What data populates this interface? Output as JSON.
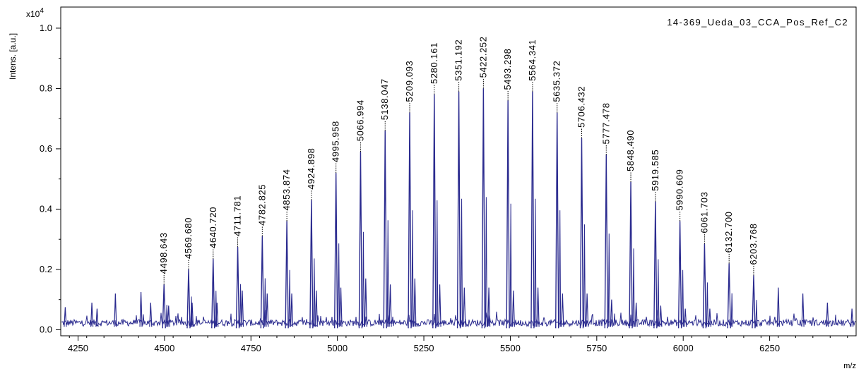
{
  "chart_data": {
    "type": "line",
    "title": "14-369_Ueda_03_CCA_Pos_Ref_C2",
    "xlabel": "m/z",
    "ylabel": "Intens. [a.u.]",
    "y_multiplier": "x10",
    "y_multiplier_exp": "4",
    "xlim": [
      4200,
      6500
    ],
    "ylim": [
      -0.02,
      1.07
    ],
    "x_ticks": [
      4250,
      4500,
      4750,
      5000,
      5250,
      5500,
      5750,
      6000,
      6250
    ],
    "x_tick_labels": [
      "4250",
      "4500",
      "4750",
      "5000",
      "5250",
      "5500",
      "5750",
      "6000",
      "6250"
    ],
    "y_ticks": [
      0.0,
      0.2,
      0.4,
      0.6,
      0.8,
      1.0
    ],
    "y_tick_labels": [
      "0.0",
      "0.2",
      "0.4",
      "0.6",
      "0.8",
      "1.0"
    ],
    "grid": false,
    "series_color": "#2b2b8f",
    "peaks": [
      {
        "mz": 4498.643,
        "label": "4498.643",
        "intensity": 0.15
      },
      {
        "mz": 4569.68,
        "label": "4569.680",
        "intensity": 0.2
      },
      {
        "mz": 4640.72,
        "label": "4640.720",
        "intensity": 0.235
      },
      {
        "mz": 4711.781,
        "label": "4711.781",
        "intensity": 0.275
      },
      {
        "mz": 4782.825,
        "label": "4782.825",
        "intensity": 0.31
      },
      {
        "mz": 4853.874,
        "label": "4853.874",
        "intensity": 0.36
      },
      {
        "mz": 4924.898,
        "label": "4924.898",
        "intensity": 0.43
      },
      {
        "mz": 4995.958,
        "label": "4995.958",
        "intensity": 0.52
      },
      {
        "mz": 5066.994,
        "label": "5066.994",
        "intensity": 0.59
      },
      {
        "mz": 5138.047,
        "label": "5138.047",
        "intensity": 0.66
      },
      {
        "mz": 5209.093,
        "label": "5209.093",
        "intensity": 0.72
      },
      {
        "mz": 5280.161,
        "label": "5280.161",
        "intensity": 0.78
      },
      {
        "mz": 5351.192,
        "label": "5351.192",
        "intensity": 0.79
      },
      {
        "mz": 5422.252,
        "label": "5422.252",
        "intensity": 0.8
      },
      {
        "mz": 5493.298,
        "label": "5493.298",
        "intensity": 0.76
      },
      {
        "mz": 5564.341,
        "label": "5564.341",
        "intensity": 0.79
      },
      {
        "mz": 5635.372,
        "label": "5635.372",
        "intensity": 0.72
      },
      {
        "mz": 5706.432,
        "label": "5706.432",
        "intensity": 0.635
      },
      {
        "mz": 5777.478,
        "label": "5777.478",
        "intensity": 0.58
      },
      {
        "mz": 5848.49,
        "label": "5848.490",
        "intensity": 0.49
      },
      {
        "mz": 5919.585,
        "label": "5919.585",
        "intensity": 0.425
      },
      {
        "mz": 5990.609,
        "label": "5990.609",
        "intensity": 0.36
      },
      {
        "mz": 6061.703,
        "label": "6061.703",
        "intensity": 0.285
      },
      {
        "mz": 6132.7,
        "label": "6132.700",
        "intensity": 0.22
      },
      {
        "mz": 6203.768,
        "label": "6203.768",
        "intensity": 0.18
      }
    ],
    "minor_peaks": [
      {
        "mz": 4213,
        "intensity": 0.075
      },
      {
        "mz": 4290,
        "intensity": 0.09
      },
      {
        "mz": 4305,
        "intensity": 0.07
      },
      {
        "mz": 4358,
        "intensity": 0.12
      },
      {
        "mz": 4432,
        "intensity": 0.125
      },
      {
        "mz": 4460,
        "intensity": 0.09
      },
      {
        "mz": 4512,
        "intensity": 0.08
      },
      {
        "mz": 4580,
        "intensity": 0.09
      },
      {
        "mz": 4652,
        "intensity": 0.09
      },
      {
        "mz": 4725,
        "intensity": 0.13
      },
      {
        "mz": 4797,
        "intensity": 0.12
      },
      {
        "mz": 4868,
        "intensity": 0.12
      },
      {
        "mz": 4939,
        "intensity": 0.13
      },
      {
        "mz": 5010,
        "intensity": 0.14
      },
      {
        "mz": 5082,
        "intensity": 0.17
      },
      {
        "mz": 5153,
        "intensity": 0.15
      },
      {
        "mz": 5224,
        "intensity": 0.17
      },
      {
        "mz": 5296,
        "intensity": 0.15
      },
      {
        "mz": 5367,
        "intensity": 0.14
      },
      {
        "mz": 5438,
        "intensity": 0.14
      },
      {
        "mz": 5509,
        "intensity": 0.13
      },
      {
        "mz": 5580,
        "intensity": 0.14
      },
      {
        "mz": 5651,
        "intensity": 0.12
      },
      {
        "mz": 5722,
        "intensity": 0.12
      },
      {
        "mz": 5793,
        "intensity": 0.1
      },
      {
        "mz": 5864,
        "intensity": 0.09
      },
      {
        "mz": 5935,
        "intensity": 0.08
      },
      {
        "mz": 6006,
        "intensity": 0.07
      },
      {
        "mz": 6077,
        "intensity": 0.07
      },
      {
        "mz": 6275,
        "intensity": 0.14
      },
      {
        "mz": 6346,
        "intensity": 0.12
      },
      {
        "mz": 6417,
        "intensity": 0.09
      },
      {
        "mz": 6488,
        "intensity": 0.07
      }
    ]
  }
}
